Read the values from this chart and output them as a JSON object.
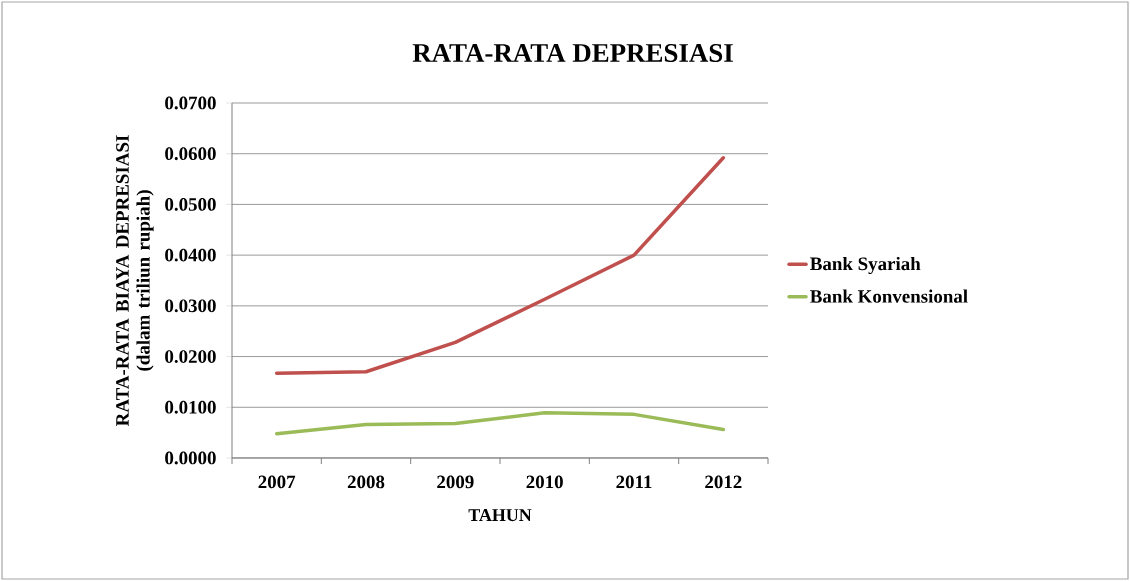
{
  "chart_data": {
    "type": "line",
    "title": "RATA-RATA DEPRESIASI",
    "xlabel": "TAHUN",
    "ylabel": "RATA-RATA BIAYA DEPRESIASI (dalam triliun rupiah)",
    "categories": [
      "2007",
      "2008",
      "2009",
      "2010",
      "2011",
      "2012"
    ],
    "series": [
      {
        "name": "Bank Syariah",
        "color": "#c0504d",
        "values": [
          0.0167,
          0.017,
          0.0228,
          0.0313,
          0.04,
          0.0592
        ]
      },
      {
        "name": "Bank Konvensional",
        "color": "#9bbb59",
        "values": [
          0.0048,
          0.0066,
          0.0068,
          0.0089,
          0.0086,
          0.0056
        ]
      }
    ],
    "ylim": [
      0,
      0.07
    ],
    "yticks": [
      {
        "value": 0,
        "label": "0.0000"
      },
      {
        "value": 0.01,
        "label": "0.0100"
      },
      {
        "value": 0.02,
        "label": "0.0200"
      },
      {
        "value": 0.03,
        "label": "0.0300"
      },
      {
        "value": 0.04,
        "label": "0.0400"
      },
      {
        "value": 0.05,
        "label": "0.0500"
      },
      {
        "value": 0.06,
        "label": "0.0600"
      },
      {
        "value": 0.07,
        "label": "0.0700"
      }
    ],
    "grid": "y",
    "legend": "right",
    "marker": "none",
    "line_style": "solid"
  }
}
